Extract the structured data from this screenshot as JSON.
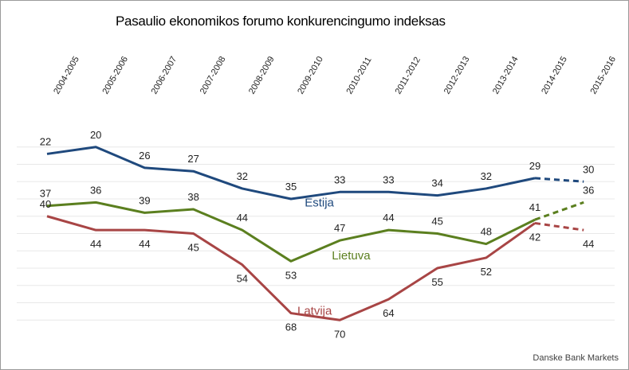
{
  "chart_data": {
    "type": "line",
    "title": "Pasaulio ekonomikos forumo konkurencingumo indeksas",
    "xlabel": "",
    "ylabel": "",
    "categories": [
      "2004-2005",
      "2005-2006",
      "2006-2007",
      "2007-2008",
      "2008-2009",
      "2009-2010",
      "2010-2011",
      "2011-2012",
      "2012-2013",
      "2013-2014",
      "2014-2015",
      "2015-2016"
    ],
    "ylim": [
      15,
      75
    ],
    "y_reversed": true,
    "grid": true,
    "legend": "inline-labels",
    "series": [
      {
        "name": "Estija",
        "color": "#1f497d",
        "values": [
          22,
          20,
          26,
          27,
          32,
          35,
          33,
          33,
          34,
          32,
          29,
          30
        ],
        "projected_from_index": 10
      },
      {
        "name": "Lietuva",
        "color": "#5b7f1f",
        "values": [
          37,
          36,
          39,
          38,
          44,
          53,
          47,
          44,
          45,
          48,
          41,
          36
        ],
        "projected_from_index": 10
      },
      {
        "name": "Latvija",
        "color": "#a84545",
        "values": [
          40,
          44,
          44,
          45,
          54,
          68,
          70,
          64,
          55,
          52,
          42,
          44
        ],
        "projected_from_index": 10
      }
    ]
  },
  "source": "Danske Bank Markets"
}
